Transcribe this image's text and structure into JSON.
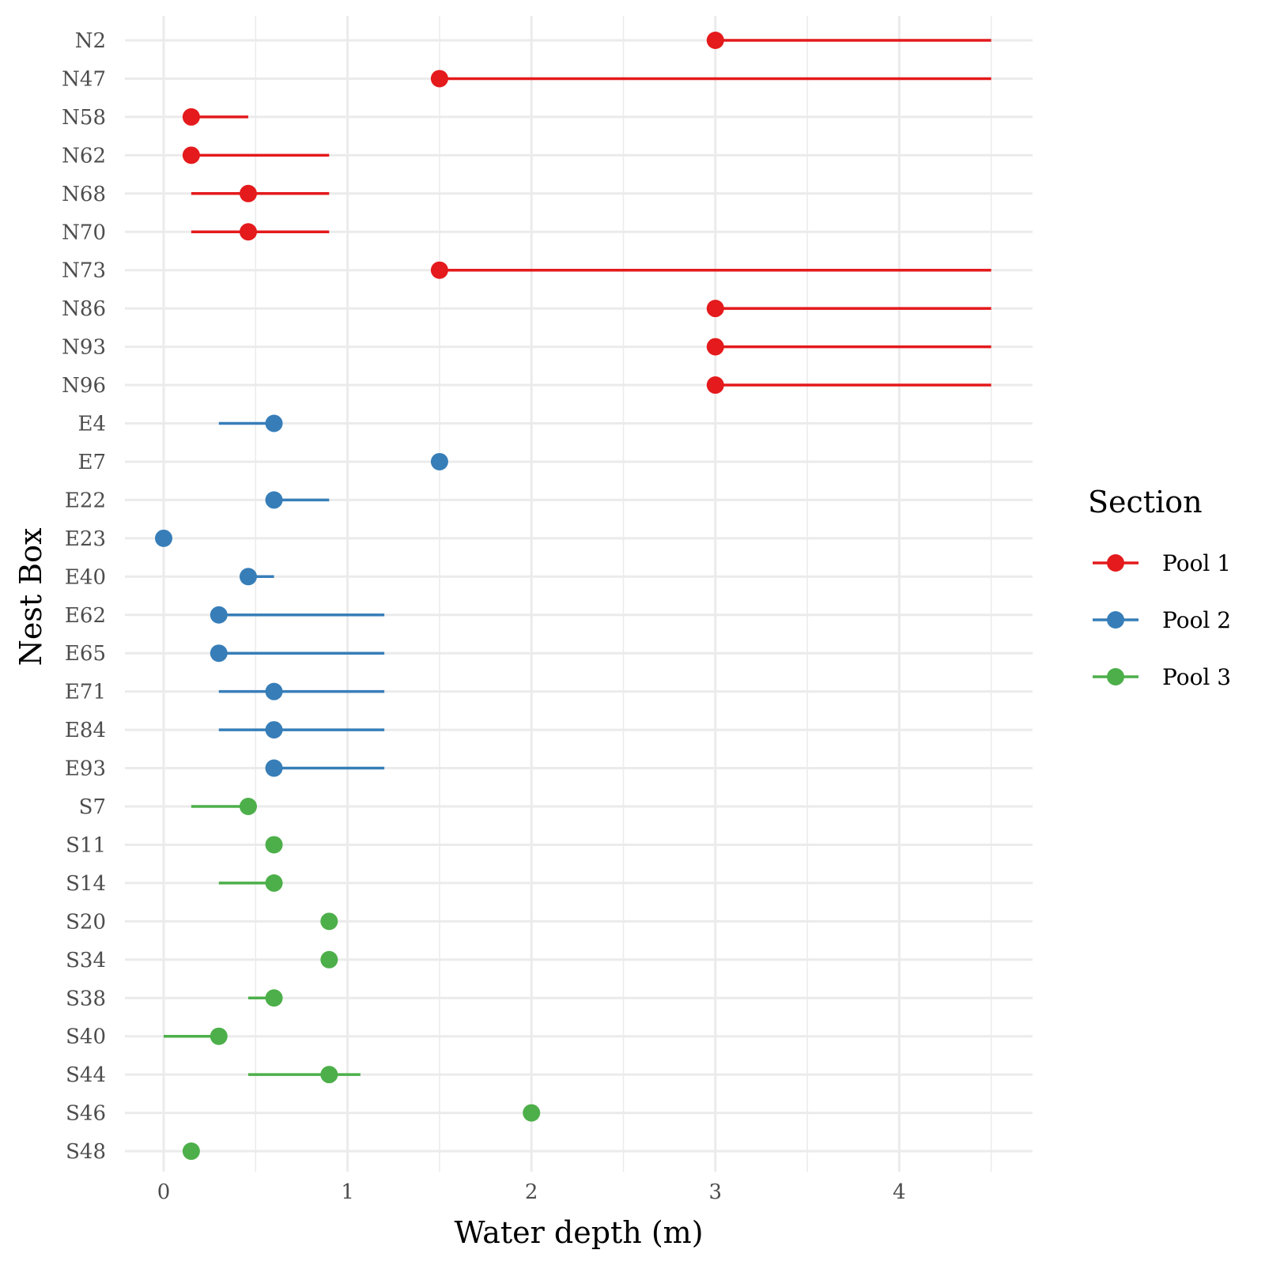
{
  "chart_data": {
    "type": "dot-range",
    "xlabel": "Water depth (m)",
    "ylabel": "Nest Box",
    "xlim": [
      -0.2,
      4.7
    ],
    "x_ticks": [
      0,
      1,
      2,
      3,
      4
    ],
    "x_minor_ticks": [
      0.5,
      1.5,
      2.5,
      3.5,
      4.5
    ],
    "grid": true,
    "legend": {
      "title": "Section",
      "position": "right",
      "entries": [
        {
          "label": "Pool 1",
          "color": "#E41A1C"
        },
        {
          "label": "Pool 2",
          "color": "#377EB8"
        },
        {
          "label": "Pool 3",
          "color": "#4DAF4A"
        }
      ]
    },
    "rows": [
      {
        "box": "N2",
        "section": "Pool 1",
        "point": 3.0,
        "low": 3.0,
        "high": 4.5
      },
      {
        "box": "N47",
        "section": "Pool 1",
        "point": 1.5,
        "low": 1.5,
        "high": 4.5
      },
      {
        "box": "N58",
        "section": "Pool 1",
        "point": 0.15,
        "low": 0.15,
        "high": 0.46
      },
      {
        "box": "N62",
        "section": "Pool 1",
        "point": 0.15,
        "low": 0.15,
        "high": 0.9
      },
      {
        "box": "N68",
        "section": "Pool 1",
        "point": 0.46,
        "low": 0.15,
        "high": 0.9
      },
      {
        "box": "N70",
        "section": "Pool 1",
        "point": 0.46,
        "low": 0.15,
        "high": 0.9
      },
      {
        "box": "N73",
        "section": "Pool 1",
        "point": 1.5,
        "low": 1.5,
        "high": 4.5
      },
      {
        "box": "N86",
        "section": "Pool 1",
        "point": 3.0,
        "low": 3.0,
        "high": 4.5
      },
      {
        "box": "N93",
        "section": "Pool 1",
        "point": 3.0,
        "low": 3.0,
        "high": 4.5
      },
      {
        "box": "N96",
        "section": "Pool 1",
        "point": 3.0,
        "low": 3.0,
        "high": 4.5
      },
      {
        "box": "E4",
        "section": "Pool 2",
        "point": 0.6,
        "low": 0.3,
        "high": 0.6
      },
      {
        "box": "E7",
        "section": "Pool 2",
        "point": 1.5,
        "low": 1.5,
        "high": 1.5
      },
      {
        "box": "E22",
        "section": "Pool 2",
        "point": 0.6,
        "low": 0.6,
        "high": 0.9
      },
      {
        "box": "E23",
        "section": "Pool 2",
        "point": 0.0,
        "low": 0.0,
        "high": 0.0
      },
      {
        "box": "E40",
        "section": "Pool 2",
        "point": 0.46,
        "low": 0.46,
        "high": 0.6
      },
      {
        "box": "E62",
        "section": "Pool 2",
        "point": 0.3,
        "low": 0.3,
        "high": 1.2
      },
      {
        "box": "E65",
        "section": "Pool 2",
        "point": 0.3,
        "low": 0.3,
        "high": 1.2
      },
      {
        "box": "E71",
        "section": "Pool 2",
        "point": 0.6,
        "low": 0.3,
        "high": 1.2
      },
      {
        "box": "E84",
        "section": "Pool 2",
        "point": 0.6,
        "low": 0.3,
        "high": 1.2
      },
      {
        "box": "E93",
        "section": "Pool 2",
        "point": 0.6,
        "low": 0.6,
        "high": 1.2
      },
      {
        "box": "S7",
        "section": "Pool 3",
        "point": 0.46,
        "low": 0.15,
        "high": 0.46
      },
      {
        "box": "S11",
        "section": "Pool 3",
        "point": 0.6,
        "low": 0.6,
        "high": 0.6
      },
      {
        "box": "S14",
        "section": "Pool 3",
        "point": 0.6,
        "low": 0.3,
        "high": 0.6
      },
      {
        "box": "S20",
        "section": "Pool 3",
        "point": 0.9,
        "low": 0.9,
        "high": 0.9
      },
      {
        "box": "S34",
        "section": "Pool 3",
        "point": 0.9,
        "low": 0.9,
        "high": 0.9
      },
      {
        "box": "S38",
        "section": "Pool 3",
        "point": 0.6,
        "low": 0.46,
        "high": 0.6
      },
      {
        "box": "S40",
        "section": "Pool 3",
        "point": 0.3,
        "low": 0.0,
        "high": 0.3
      },
      {
        "box": "S44",
        "section": "Pool 3",
        "point": 0.9,
        "low": 0.46,
        "high": 1.07
      },
      {
        "box": "S46",
        "section": "Pool 3",
        "point": 2.0,
        "low": 2.0,
        "high": 2.0
      },
      {
        "box": "S48",
        "section": "Pool 3",
        "point": 0.15,
        "low": 0.15,
        "high": 0.15
      }
    ]
  }
}
